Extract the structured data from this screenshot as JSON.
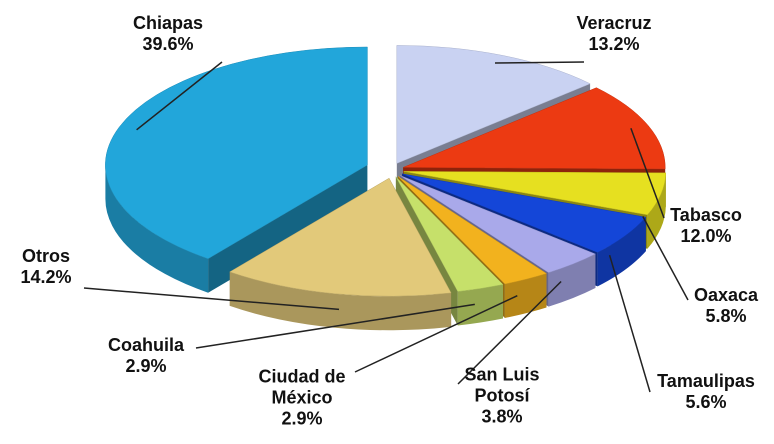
{
  "chart_data": {
    "type": "pie3d",
    "categories": [
      "Chiapas",
      "Veracruz",
      "Tabasco",
      "Oaxaca",
      "Tamaulipas",
      "San Luis Potosí",
      "Ciudad de México",
      "Coahuila",
      "Otros"
    ],
    "values": [
      39.6,
      13.2,
      12.0,
      5.8,
      5.6,
      3.8,
      2.9,
      2.9,
      14.2
    ],
    "value_labels": [
      "39.6%",
      "13.2%",
      "12.0%",
      "5.8%",
      "5.6%",
      "3.8%",
      "2.9%",
      "2.9%",
      "14.2%"
    ],
    "colors": [
      "#22a6da",
      "#c9d2f2",
      "#ec3a12",
      "#e6e020",
      "#1446d8",
      "#a9a9ea",
      "#f2b21e",
      "#c6e06a",
      "#e2c97a"
    ]
  }
}
